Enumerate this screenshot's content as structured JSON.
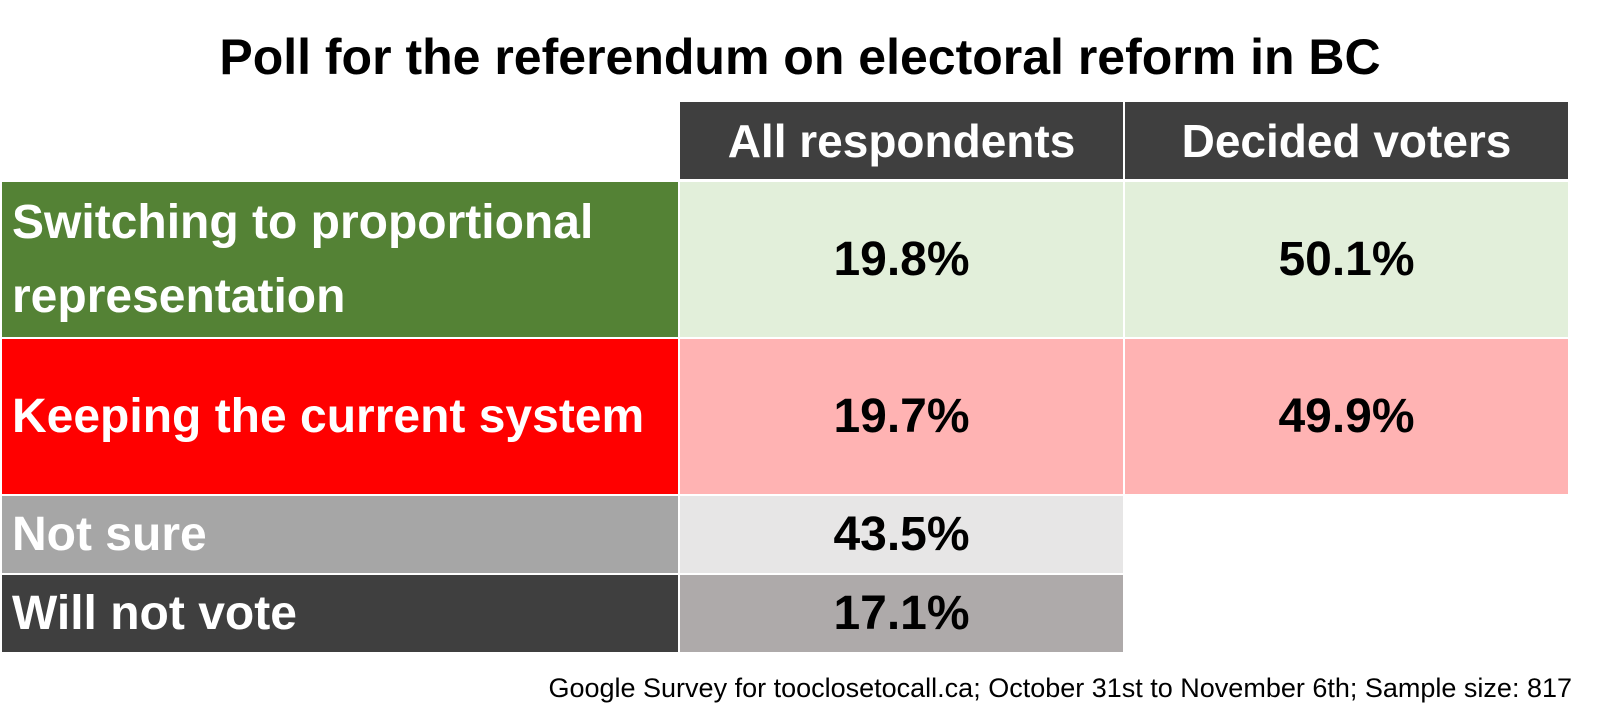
{
  "chart_data": {
    "type": "table",
    "title": "Poll for the referendum on electoral reform in BC",
    "columns": [
      "All respondents",
      "Decided voters"
    ],
    "rows": [
      {
        "label": "Switching to proportional representation",
        "values": [
          "19.8%",
          "50.1%"
        ],
        "label_color": "#548235",
        "cell_color": "#e2efda"
      },
      {
        "label": "Keeping the current system",
        "values": [
          "19.7%",
          "49.9%"
        ],
        "label_color": "#ff0000",
        "cell_color": "#ffb3b3"
      },
      {
        "label": "Not sure",
        "values": [
          "43.5%",
          ""
        ],
        "label_color": "#a6a6a6",
        "cell_color": "#e7e6e6"
      },
      {
        "label": "Will not vote",
        "values": [
          "17.1%",
          ""
        ],
        "label_color": "#3f3f3f",
        "cell_color": "#aeaaaa"
      }
    ],
    "source": "Google Survey for tooclosetocall.ca; October 31st to November 6th; Sample size: 817"
  }
}
